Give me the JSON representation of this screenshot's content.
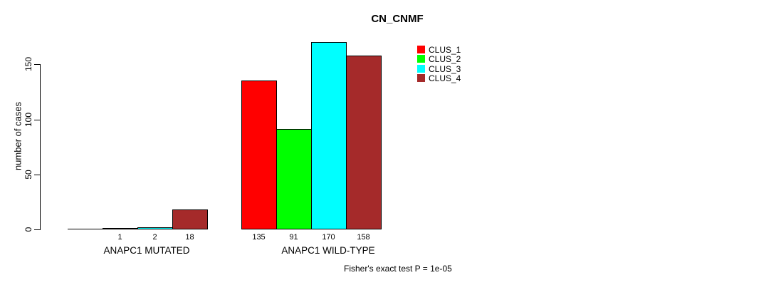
{
  "title": "CN_CNMF",
  "chart_data": {
    "type": "bar",
    "title": "CN_CNMF",
    "xlabel": "",
    "ylabel": "number of cases",
    "y_ticks": [
      0,
      50,
      100,
      150
    ],
    "ylim": [
      0,
      170
    ],
    "grid": false,
    "legend_position": "top-right",
    "categories": [
      "ANAPC1 MUTATED",
      "ANAPC1 WILD-TYPE"
    ],
    "series": [
      {
        "name": "CLUS_1",
        "color": "#FF0000",
        "values": [
          0,
          135
        ]
      },
      {
        "name": "CLUS_2",
        "color": "#00FF00",
        "values": [
          1,
          91
        ]
      },
      {
        "name": "CLUS_3",
        "color": "#00FFFF",
        "values": [
          2,
          170
        ]
      },
      {
        "name": "CLUS_4",
        "color": "#A52A2A",
        "values": [
          18,
          158
        ]
      }
    ],
    "bar_value_labels": [
      [
        "",
        "1",
        "2",
        "18"
      ],
      [
        "135",
        "91",
        "170",
        "158"
      ]
    ],
    "legend": [
      {
        "label": "CLUS_1",
        "color": "#FF0000"
      },
      {
        "label": "CLUS_2",
        "color": "#00FF00"
      },
      {
        "label": "CLUS_3",
        "color": "#00FFFF"
      },
      {
        "label": "CLUS_4",
        "color": "#A52A2A"
      }
    ],
    "annotation": "Fisher's exact test P = 1e-05"
  }
}
